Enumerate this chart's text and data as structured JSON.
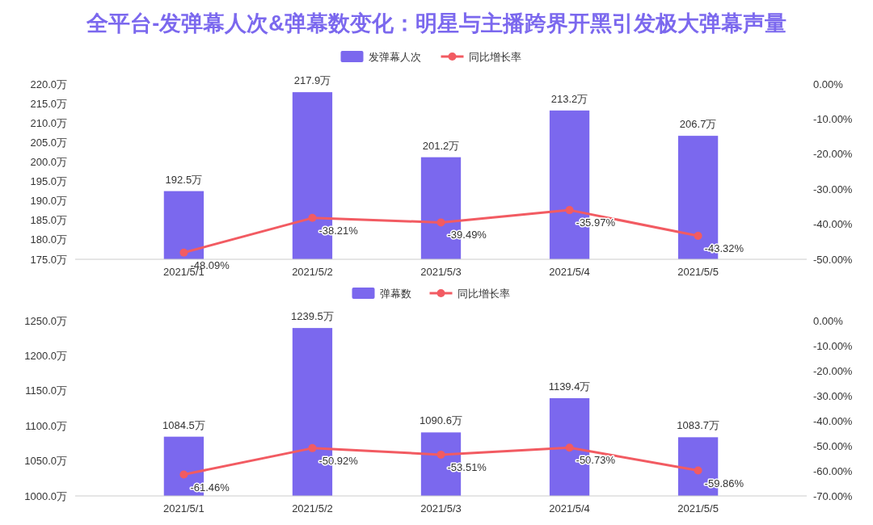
{
  "chart_data": [
    {
      "type": "bar",
      "title": "全平台-发弹幕人次&弹幕数变化：明星与主播跨界开黑引发极大弹幕声量",
      "categories": [
        "2021/5/1",
        "2021/5/2",
        "2021/5/3",
        "2021/5/4",
        "2021/5/5"
      ],
      "series": [
        {
          "name": "发弹幕人次",
          "color": "#7b68ee",
          "values": [
            192.5,
            217.9,
            201.2,
            213.2,
            206.7
          ],
          "value_labels": [
            "192.5万",
            "217.9万",
            "201.2万",
            "213.2万",
            "206.7万"
          ]
        },
        {
          "name": "同比增长率",
          "type": "line",
          "axis": "y2",
          "color": "#f25b62",
          "values": [
            -48.09,
            -38.21,
            -39.49,
            -35.97,
            -43.32
          ],
          "value_labels": [
            "-48.09%",
            "-38.21%",
            "-39.49%",
            "-35.97%",
            "-43.32%"
          ]
        }
      ],
      "ylim": [
        175,
        220
      ],
      "yticks": [
        {
          "value": 175,
          "label": "175.0万"
        },
        {
          "value": 180,
          "label": "180.0万"
        },
        {
          "value": 185,
          "label": "185.0万"
        },
        {
          "value": 190,
          "label": "190.0万"
        },
        {
          "value": 195,
          "label": "195.0万"
        },
        {
          "value": 200,
          "label": "200.0万"
        },
        {
          "value": 205,
          "label": "205.0万"
        },
        {
          "value": 210,
          "label": "210.0万"
        },
        {
          "value": 215,
          "label": "215.0万"
        },
        {
          "value": 220,
          "label": "220.0万"
        }
      ],
      "y2lim": [
        -50,
        0
      ],
      "y2ticks": [
        {
          "value": 0,
          "label": "0.00%"
        },
        {
          "value": -10,
          "label": "-10.00%"
        },
        {
          "value": -20,
          "label": "-20.00%"
        },
        {
          "value": -30,
          "label": "-30.00%"
        },
        {
          "value": -40,
          "label": "-40.00%"
        },
        {
          "value": -50,
          "label": "-50.00%"
        }
      ],
      "legend": "top",
      "marker": "circle"
    },
    {
      "type": "bar",
      "categories": [
        "2021/5/1",
        "2021/5/2",
        "2021/5/3",
        "2021/5/4",
        "2021/5/5"
      ],
      "series": [
        {
          "name": "弹幕数",
          "color": "#7b68ee",
          "values": [
            1084.5,
            1239.5,
            1090.6,
            1139.4,
            1083.7
          ],
          "value_labels": [
            "1084.5万",
            "1239.5万",
            "1090.6万",
            "1139.4万",
            "1083.7万"
          ]
        },
        {
          "name": "同比增长率",
          "type": "line",
          "axis": "y2",
          "color": "#f25b62",
          "values": [
            -61.46,
            -50.92,
            -53.51,
            -50.73,
            -59.86
          ],
          "value_labels": [
            "-61.46%",
            "-50.92%",
            "-53.51%",
            "-50.73%",
            "-59.86%"
          ]
        }
      ],
      "ylim": [
        1000,
        1250
      ],
      "yticks": [
        {
          "value": 1000,
          "label": "1000.0万"
        },
        {
          "value": 1050,
          "label": "1050.0万"
        },
        {
          "value": 1100,
          "label": "1100.0万"
        },
        {
          "value": 1150,
          "label": "1150.0万"
        },
        {
          "value": 1200,
          "label": "1200.0万"
        },
        {
          "value": 1250,
          "label": "1250.0万"
        }
      ],
      "y2lim": [
        -70,
        0
      ],
      "y2ticks": [
        {
          "value": 0,
          "label": "0.00%"
        },
        {
          "value": -10,
          "label": "-10.00%"
        },
        {
          "value": -20,
          "label": "-20.00%"
        },
        {
          "value": -30,
          "label": "-30.00%"
        },
        {
          "value": -40,
          "label": "-40.00%"
        },
        {
          "value": -50,
          "label": "-50.00%"
        },
        {
          "value": -60,
          "label": "-60.00%"
        },
        {
          "value": -70,
          "label": "-70.00%"
        }
      ],
      "legend": "top",
      "marker": "circle"
    }
  ]
}
